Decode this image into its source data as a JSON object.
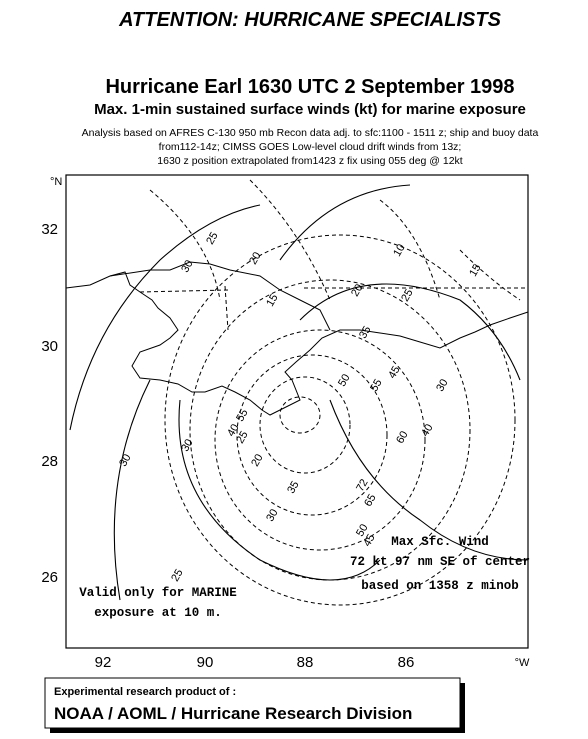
{
  "header": {
    "banner": "ATTENTION: HURRICANE SPECIALISTS",
    "title": "Hurricane Earl 1630 UTC 2 September 1998",
    "subtitle": "Max. 1-min sustained surface winds (kt) for marine exposure",
    "notes": [
      "Analysis based on  AFRES C-130 950 mb Recon data  adj. to sfc:1100 -  1511 z; ship and buoy data",
      "from112-14z; CIMSS GOES Low-level cloud drift winds from 13z;",
      "1630 z position extrapolated from1423 z fix using 055 deg @ 12kt"
    ]
  },
  "map": {
    "lat_unit": "°N",
    "lat_labels": [
      "32",
      "30",
      "28",
      "26"
    ],
    "lon_unit": "°W",
    "lon_labels": [
      "92",
      "90",
      "88",
      "86"
    ],
    "contour_labels": [
      "25",
      "20",
      "30",
      "10",
      "15",
      "15",
      "20",
      "25",
      "35",
      "30",
      "55",
      "50",
      "45",
      "40",
      "60",
      "55",
      "40",
      "25",
      "30",
      "20",
      "35",
      "72",
      "65",
      "50",
      "45",
      "30",
      "30",
      "25"
    ],
    "annotations": {
      "max_wind": [
        "Max Sfc. Wind",
        "72 kt  97 nm SE of center",
        "based on 1358 z minob"
      ],
      "validity": [
        "Valid only for MARINE",
        "exposure at 10 m."
      ]
    }
  },
  "footer": {
    "line1": "Experimental research product of :",
    "line2": "NOAA / AOML / Hurricane Research Division"
  }
}
